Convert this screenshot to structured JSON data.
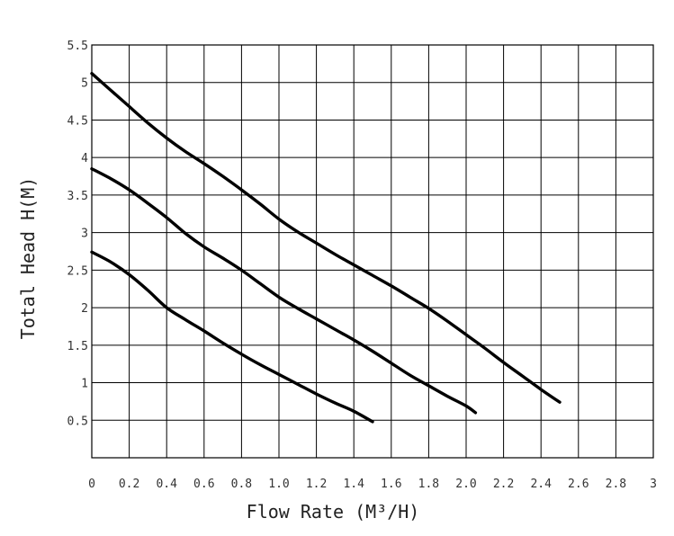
{
  "chart_data": {
    "type": "line",
    "xlabel": "Flow Rate (M³/H)",
    "ylabel": "Total Head H(M)",
    "xlim": [
      0,
      3
    ],
    "ylim": [
      0,
      5.5
    ],
    "xticks": [
      "0",
      "0.2",
      "0.4",
      "0.6",
      "0.8",
      "1.0",
      "1.2",
      "1.4",
      "1.6",
      "1.8",
      "2.0",
      "2.2",
      "2.4",
      "2.6",
      "2.8",
      "3"
    ],
    "yticks": [
      "0.5",
      "1",
      "1.5",
      "2",
      "2.5",
      "3",
      "3.5",
      "4",
      "4.5",
      "5",
      "5.5"
    ],
    "grid": true,
    "series": [
      {
        "x": [
          0,
          0.1,
          0.2,
          0.3,
          0.4,
          0.5,
          0.6,
          0.7,
          0.8,
          0.9,
          1.0,
          1.1,
          1.2,
          1.3,
          1.4,
          1.5,
          1.6,
          1.7,
          1.8,
          1.9,
          2.0,
          2.1,
          2.2,
          2.3,
          2.4,
          2.5
        ],
        "values": [
          5.12,
          4.9,
          4.68,
          4.46,
          4.26,
          4.08,
          3.92,
          3.75,
          3.57,
          3.38,
          3.18,
          3.01,
          2.86,
          2.71,
          2.57,
          2.43,
          2.29,
          2.14,
          1.99,
          1.82,
          1.64,
          1.46,
          1.27,
          1.09,
          0.91,
          0.74
        ]
      },
      {
        "x": [
          0,
          0.1,
          0.2,
          0.3,
          0.4,
          0.5,
          0.6,
          0.7,
          0.8,
          0.9,
          1.0,
          1.1,
          1.2,
          1.3,
          1.4,
          1.5,
          1.6,
          1.7,
          1.8,
          1.9,
          2.0,
          2.05
        ],
        "values": [
          3.85,
          3.72,
          3.57,
          3.39,
          3.2,
          2.99,
          2.81,
          2.66,
          2.5,
          2.32,
          2.14,
          1.99,
          1.85,
          1.71,
          1.57,
          1.42,
          1.26,
          1.1,
          0.96,
          0.82,
          0.69,
          0.6
        ]
      },
      {
        "x": [
          0,
          0.1,
          0.2,
          0.3,
          0.4,
          0.5,
          0.6,
          0.7,
          0.8,
          0.9,
          1.0,
          1.1,
          1.2,
          1.3,
          1.4,
          1.5
        ],
        "values": [
          2.74,
          2.61,
          2.44,
          2.23,
          2.0,
          1.84,
          1.69,
          1.53,
          1.38,
          1.24,
          1.11,
          0.98,
          0.85,
          0.73,
          0.62,
          0.48
        ]
      }
    ]
  }
}
